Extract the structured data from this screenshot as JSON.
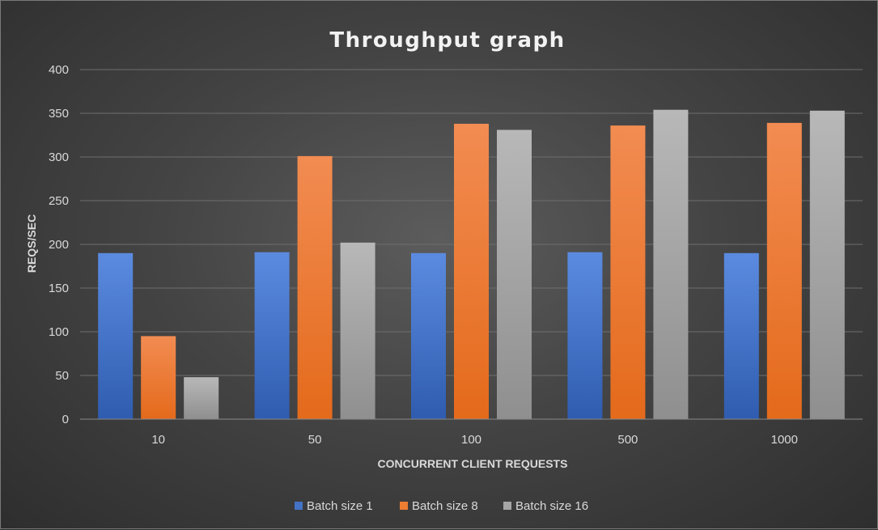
{
  "chart_data": {
    "type": "bar",
    "title": "Throughput graph",
    "xlabel": "CONCURRENT CLIENT REQUESTS",
    "ylabel": "REQS/SEC",
    "categories": [
      "10",
      "50",
      "100",
      "500",
      "1000"
    ],
    "series": [
      {
        "name": "Batch size 1",
        "values": [
          190,
          191,
          190,
          191,
          190
        ],
        "color": "#4472c4",
        "color_light": "#5b8be0",
        "color_dark": "#2f5caf"
      },
      {
        "name": "Batch size 8",
        "values": [
          95,
          301,
          338,
          336,
          339
        ],
        "color": "#ed7d31",
        "color_light": "#f28c52",
        "color_dark": "#e46a1b"
      },
      {
        "name": "Batch size 16",
        "values": [
          48,
          202,
          331,
          354,
          353
        ],
        "color": "#a5a5a5",
        "color_light": "#b8b8b8",
        "color_dark": "#8f8f8f"
      }
    ],
    "ylim": [
      0,
      400
    ],
    "yticks": [
      "0",
      "50",
      "100",
      "150",
      "200",
      "250",
      "300",
      "350",
      "400"
    ],
    "grid": true,
    "legend_position": "bottom"
  }
}
